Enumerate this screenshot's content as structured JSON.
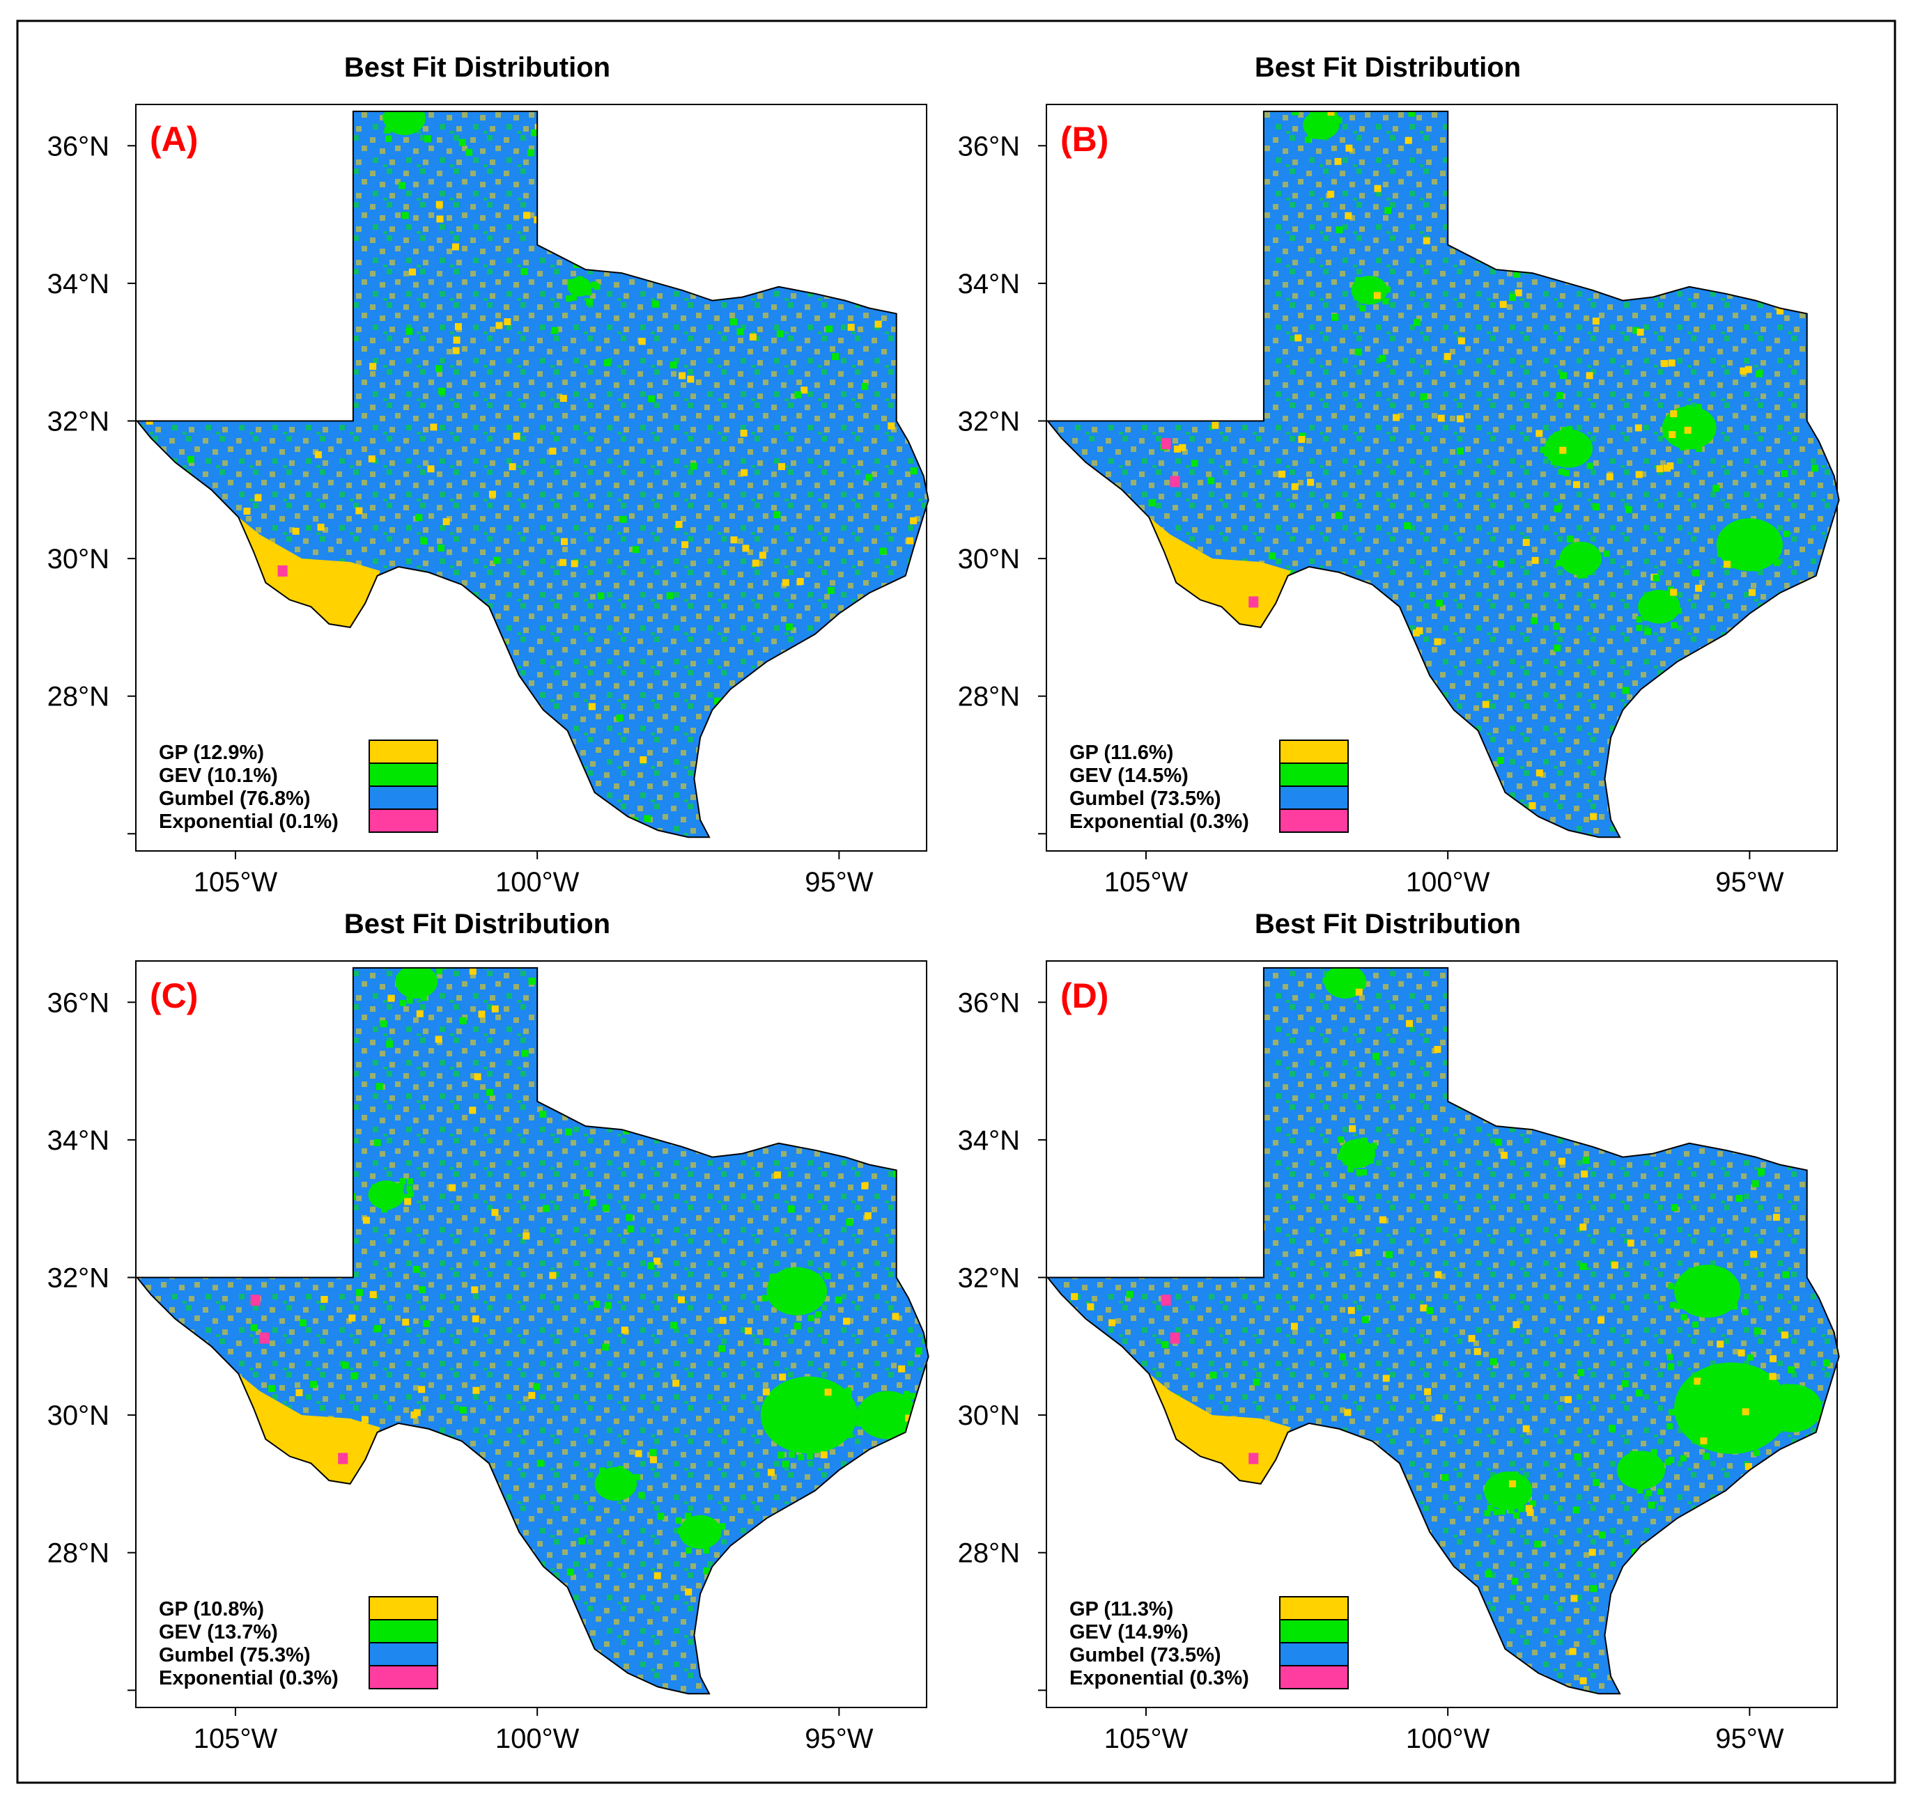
{
  "figure": {
    "colors": {
      "GP": "#ffd200",
      "GEV": "#00e600",
      "Gumbel": "#1e87f0",
      "Exponential": "#ff3ca0",
      "label": "#ff0000"
    },
    "y_ticks": [
      "36°N",
      "34°N",
      "32°N",
      "30°N",
      "28°N"
    ],
    "x_ticks": [
      "105°W",
      "100°W",
      "95°W"
    ],
    "panels": [
      {
        "title": "Best Fit Distribution",
        "label": "(A)",
        "legend": [
          {
            "key": "GP",
            "text": "GP (12.9%)",
            "percent": 12.9
          },
          {
            "key": "GEV",
            "text": "GEV (10.1%)",
            "percent": 10.1
          },
          {
            "key": "Gumbel",
            "text": "Gumbel (76.8%)",
            "percent": 76.8
          },
          {
            "key": "Exponential",
            "text": "Exponential (0.1%)",
            "percent": 0.1
          }
        ]
      },
      {
        "title": "Best Fit Distribution",
        "label": "(B)",
        "legend": [
          {
            "key": "GP",
            "text": "GP (11.6%)",
            "percent": 11.6
          },
          {
            "key": "GEV",
            "text": "GEV (14.5%)",
            "percent": 14.5
          },
          {
            "key": "Gumbel",
            "text": "Gumbel (73.5%)",
            "percent": 73.5
          },
          {
            "key": "Exponential",
            "text": "Exponential (0.3%)",
            "percent": 0.3
          }
        ]
      },
      {
        "title": "Best Fit Distribution",
        "label": "(C)",
        "legend": [
          {
            "key": "GP",
            "text": "GP (10.8%)",
            "percent": 10.8
          },
          {
            "key": "GEV",
            "text": "GEV (13.7%)",
            "percent": 13.7
          },
          {
            "key": "Gumbel",
            "text": "Gumbel (75.3%)",
            "percent": 75.3
          },
          {
            "key": "Exponential",
            "text": "Exponential (0.3%)",
            "percent": 0.3
          }
        ]
      },
      {
        "title": "Best Fit Distribution",
        "label": "(D)",
        "legend": [
          {
            "key": "GP",
            "text": "GP (11.3%)",
            "percent": 11.3
          },
          {
            "key": "GEV",
            "text": "GEV (14.9%)",
            "percent": 14.9
          },
          {
            "key": "Gumbel",
            "text": "Gumbel (73.5%)",
            "percent": 73.5
          },
          {
            "key": "Exponential",
            "text": "Exponential (0.3%)",
            "percent": 0.3
          }
        ]
      }
    ]
  }
}
